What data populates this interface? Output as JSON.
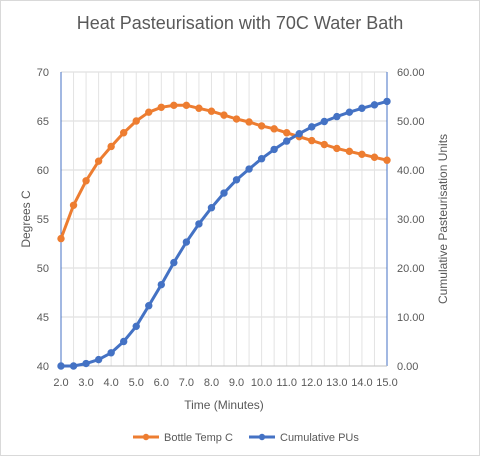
{
  "chart_data": {
    "type": "line",
    "title": "Heat Pasteurisation with 70C Water Bath",
    "xlabel": "Time (Minutes)",
    "ylabel": "Degrees C",
    "y2label": "Cumulative Pasteurisation Units",
    "xlim": [
      2.0,
      15.0
    ],
    "ylim": [
      40,
      70
    ],
    "y2lim": [
      0,
      60
    ],
    "x_ticks": [
      "2.0",
      "3.0",
      "4.0",
      "5.0",
      "6.0",
      "7.0",
      "8.0",
      "9.0",
      "10.0",
      "11.0",
      "12.0",
      "13.0",
      "14.0",
      "15.0"
    ],
    "y_ticks": [
      "40",
      "45",
      "50",
      "55",
      "60",
      "65",
      "70"
    ],
    "y2_ticks": [
      "0.00",
      "10.00",
      "20.00",
      "30.00",
      "40.00",
      "50.00",
      "60.00"
    ],
    "x": [
      2.0,
      2.5,
      3.0,
      3.5,
      4.0,
      4.5,
      5.0,
      5.5,
      6.0,
      6.5,
      7.0,
      7.5,
      8.0,
      8.5,
      9.0,
      9.5,
      10.0,
      10.5,
      11.0,
      11.5,
      12.0,
      12.5,
      13.0,
      13.5,
      14.0,
      14.5,
      15.0
    ],
    "series": [
      {
        "name": "Bottle Temp C",
        "axis": "left",
        "color": "#ED7D31",
        "values": [
          53.0,
          56.4,
          58.9,
          60.9,
          62.4,
          63.8,
          65.0,
          65.9,
          66.4,
          66.6,
          66.6,
          66.3,
          66.0,
          65.6,
          65.2,
          64.9,
          64.5,
          64.2,
          63.8,
          63.4,
          63.0,
          62.6,
          62.2,
          61.9,
          61.6,
          61.3,
          61.0
        ]
      },
      {
        "name": "Cumulative PUs",
        "axis": "right",
        "color": "#4472C4",
        "values": [
          0.0,
          0.0,
          0.5,
          1.3,
          2.7,
          5.0,
          8.1,
          12.3,
          16.6,
          21.1,
          25.3,
          29.0,
          32.3,
          35.3,
          38.0,
          40.2,
          42.3,
          44.2,
          45.9,
          47.4,
          48.8,
          49.9,
          50.9,
          51.8,
          52.6,
          53.3,
          54.0
        ]
      }
    ],
    "grid": true,
    "legend": "bottom"
  }
}
